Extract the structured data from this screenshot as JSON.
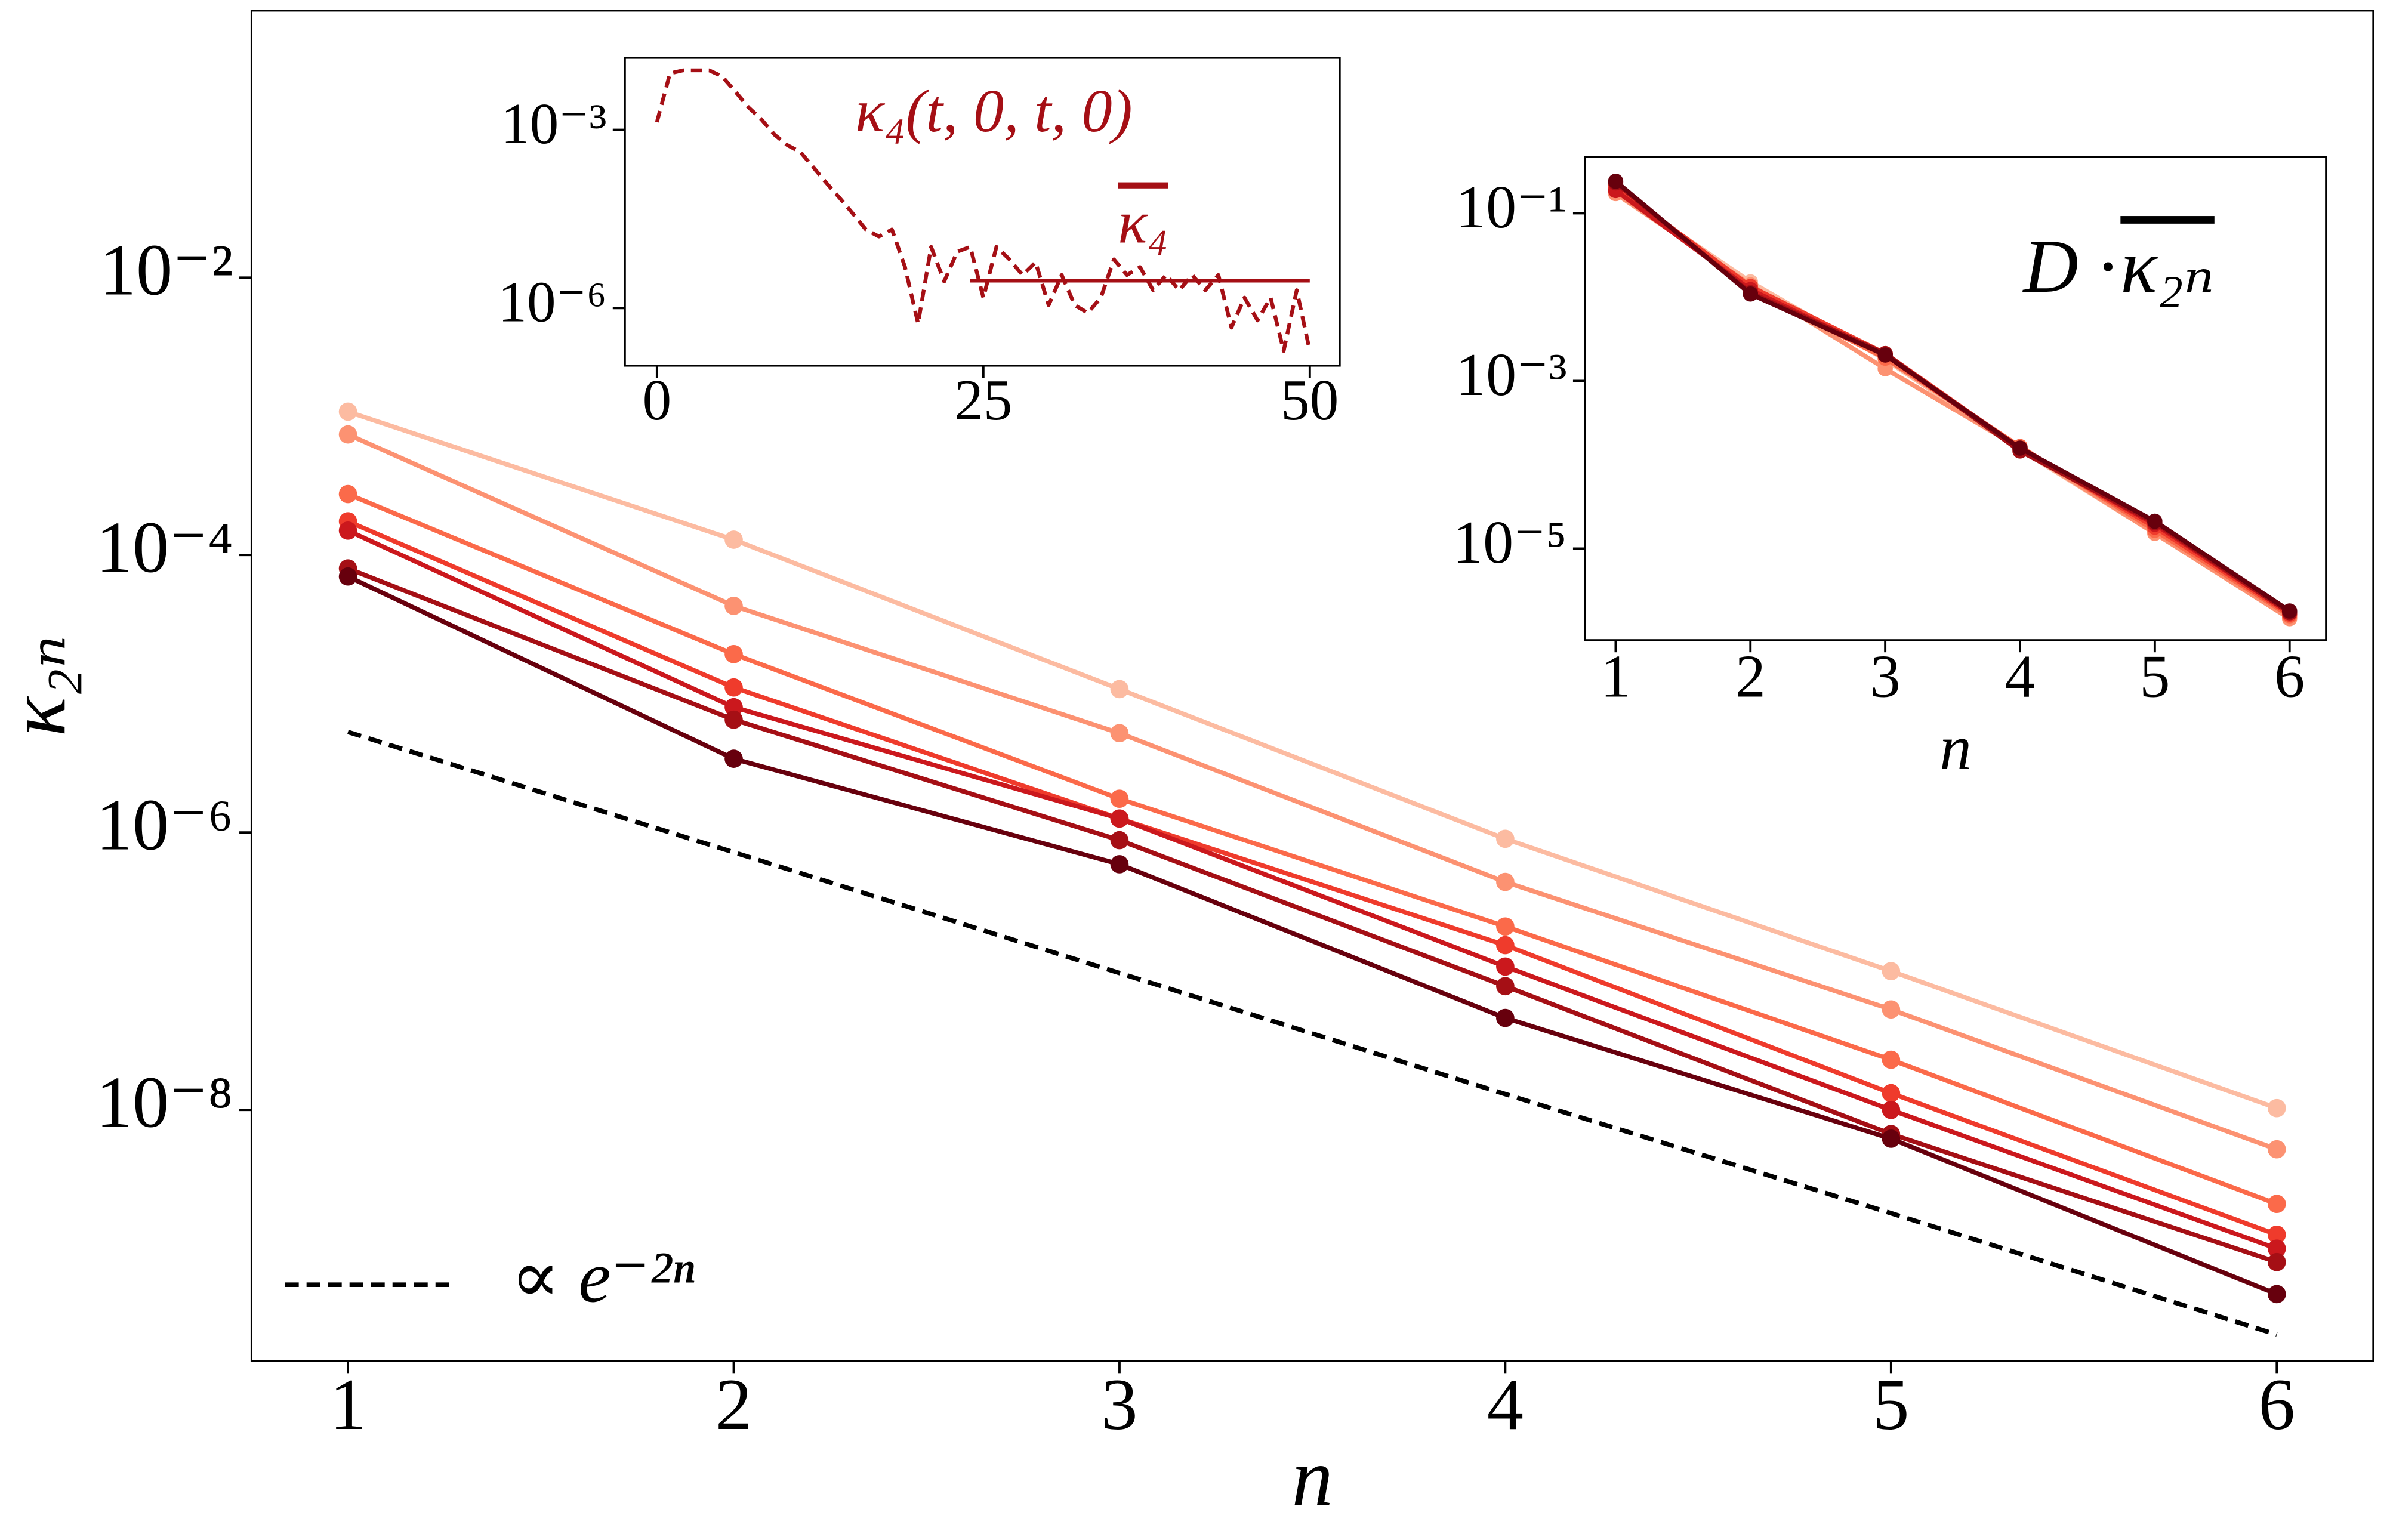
{
  "chart_data": [
    {
      "type": "line",
      "log_y": true,
      "xlabel": "n",
      "ylabel": "κ₂ₙ",
      "ylabel_overline": true,
      "legend": "lower left",
      "x": [
        1,
        2,
        3,
        4,
        5,
        6
      ],
      "xlim": [
        0.75,
        6.25
      ],
      "ylim": [
        1.55e-10,
        0.84
      ],
      "xticks": [
        1,
        2,
        3,
        4,
        5,
        6
      ],
      "yticks": [
        {
          "value": 1e-08,
          "label": "10⁻⁸"
        },
        {
          "value": 1e-06,
          "label": "10⁻⁶"
        },
        {
          "value": 0.0001,
          "label": "10⁻⁴"
        },
        {
          "value": 0.01,
          "label": "10⁻²"
        }
      ],
      "series": [
        {
          "color": "#fcbba1",
          "markers": true,
          "values": [
            0.00108,
            0.000129,
            1.08e-05,
            9e-07,
            1e-07,
            1.03e-08
          ]
        },
        {
          "color": "#fc9272",
          "markers": true,
          "values": [
            0.00074,
            4.3e-05,
            5.2e-06,
            4.4e-07,
            5.3e-08,
            5.2e-09
          ]
        },
        {
          "color": "#fb6a4a",
          "markers": true,
          "values": [
            0.000275,
            1.93e-05,
            1.75e-06,
            2.1e-07,
            2.3e-08,
            2.1e-09
          ]
        },
        {
          "color": "#ef3b2c",
          "markers": true,
          "values": [
            0.000175,
            1.11e-05,
            1.26e-06,
            1.54e-07,
            1.32e-08,
            1.26e-09
          ]
        },
        {
          "color": "#cb181d",
          "markers": true,
          "values": [
            0.00015,
            8e-06,
            1.26e-06,
            1.08e-07,
            1e-08,
            1e-09
          ]
        },
        {
          "color": "#a50f15",
          "markers": true,
          "values": [
            8e-05,
            6.5e-06,
            8.8e-07,
            7.8e-08,
            6.7e-09,
            8e-10
          ]
        },
        {
          "color": "#67000d",
          "markers": true,
          "values": [
            7e-05,
            3.4e-06,
            5.9e-07,
            4.6e-08,
            6.2e-09,
            4.7e-10
          ]
        },
        {
          "name": "∝ e⁻²ⁿ",
          "color": "#000000",
          "dashed": true,
          "values": [
            5.3e-06,
            7.2e-07,
            9.7e-08,
            1.3e-08,
            1.8e-09,
            2.4e-10
          ]
        }
      ]
    },
    {
      "type": "line",
      "log_y": true,
      "xlim": [
        -2.45,
        52.3
      ],
      "ylim": [
        1.07e-07,
        0.0162
      ],
      "xticks": [
        0,
        25,
        50
      ],
      "yticks": [
        {
          "value": 1e-06,
          "label": "10⁻⁶"
        },
        {
          "value": 0.001,
          "label": "10⁻³"
        }
      ],
      "annotations": [
        {
          "text": "κ₄(t, 0, t, 0)",
          "color": "#a50f15"
        },
        {
          "text": "κ₄",
          "color": "#a50f15",
          "overline": true
        }
      ],
      "series": [
        {
          "color": "#a50f15",
          "dashed": true,
          "x": [
            0,
            1,
            2,
            3,
            4,
            5,
            6,
            7,
            8,
            9,
            10,
            11,
            12,
            13,
            14,
            15,
            16,
            17,
            18,
            19,
            20,
            21,
            22,
            23,
            24,
            25,
            26,
            27,
            28,
            29,
            30,
            31,
            32,
            33,
            34,
            35,
            36,
            37,
            38,
            39,
            40,
            41,
            42,
            43,
            44,
            45,
            46,
            47,
            48,
            49,
            50
          ],
          "values": [
            0.00135,
            0.0089,
            0.01,
            0.01,
            0.01,
            0.0079,
            0.0044,
            0.0024,
            0.0015,
            0.00083,
            0.00055,
            0.00042,
            0.00023,
            0.000126,
            7.1e-05,
            3.9e-05,
            2.1e-05,
            1.6e-05,
            2.1e-05,
            4.9e-06,
            5.5e-07,
            1.07e-05,
            2.8e-06,
            8.9e-06,
            1.07e-05,
            1.5e-06,
            1.07e-05,
            6.6e-06,
            3.6e-06,
            5.9e-06,
            1.12e-06,
            3.6e-06,
            1.12e-06,
            8.3e-07,
            1.5e-06,
            6.6e-06,
            3.6e-06,
            4.9e-06,
            2e-06,
            3.6e-06,
            2e-06,
            3.6e-06,
            2e-06,
            3.6e-06,
            4.7e-07,
            1.5e-06,
            6.2e-07,
            1.5e-06,
            1.9e-07,
            2e-06,
            1.9e-07
          ]
        },
        {
          "color": "#a50f15",
          "x": [
            24,
            50
          ],
          "values": [
            2.9e-06,
            2.9e-06
          ]
        }
      ]
    },
    {
      "type": "line",
      "log_y": true,
      "xlabel": "n",
      "x": [
        1,
        2,
        3,
        4,
        5,
        6
      ],
      "xlim": [
        0.774,
        6.27
      ],
      "ylim": [
        8.1e-07,
        0.47
      ],
      "xticks": [
        1,
        2,
        3,
        4,
        5,
        6
      ],
      "yticks": [
        {
          "value": 1e-05,
          "label": "10⁻⁵"
        },
        {
          "value": 0.001,
          "label": "10⁻³"
        },
        {
          "value": 0.1,
          "label": "10⁻¹"
        }
      ],
      "annotations": [
        {
          "text": "D ·",
          "color": "#000000"
        },
        {
          "text": "κ₂ₙ",
          "color": "#000000",
          "overline": true
        }
      ],
      "series": [
        {
          "color": "#fcbba1",
          "markers": true,
          "values": [
            0.187,
            0.0152,
            0.0018,
            0.000152,
            1.52e-05,
            1.52e-06
          ]
        },
        {
          "color": "#fc9272",
          "markers": true,
          "values": [
            0.172,
            0.014,
            0.0014,
            0.000158,
            1.52e-05,
            1.46e-06
          ]
        },
        {
          "color": "#fb6a4a",
          "markers": true,
          "values": [
            0.195,
            0.0123,
            0.00187,
            0.000165,
            1.65e-05,
            1.58e-06
          ]
        },
        {
          "color": "#ef3b2c",
          "markers": true,
          "values": [
            0.212,
            0.0134,
            0.00212,
            0.000158,
            1.8e-05,
            1.65e-06
          ]
        },
        {
          "color": "#cb181d",
          "markers": true,
          "values": [
            0.187,
            0.0123,
            0.00204,
            0.000152,
            1.95e-05,
            1.72e-06
          ]
        },
        {
          "color": "#a50f15",
          "markers": true,
          "values": [
            0.231,
            0.0113,
            0.00212,
            0.000146,
            2.04e-05,
            1.72e-06
          ]
        },
        {
          "color": "#67000d",
          "markers": true,
          "values": [
            0.241,
            0.0109,
            0.00204,
            0.000158,
            2.12e-05,
            1.8e-06
          ]
        }
      ]
    }
  ]
}
